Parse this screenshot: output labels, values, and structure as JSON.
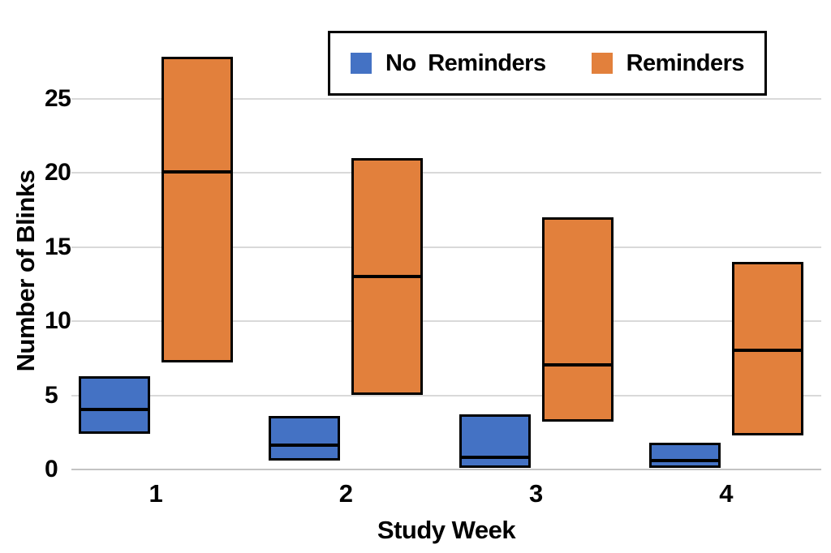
{
  "chart_data": {
    "type": "box",
    "title": "",
    "xlabel": "Study Week",
    "ylabel": "Number of Blinks",
    "categories": [
      "1",
      "2",
      "3",
      "4"
    ],
    "y_ticks": [
      0,
      5,
      10,
      15,
      20,
      25
    ],
    "ylim": [
      0,
      31.5
    ],
    "grid": "horizontal",
    "legend_position": "top-right-inside",
    "series": [
      {
        "name": "No Reminders",
        "color": "#4472C4",
        "boxes": [
          {
            "week": "1",
            "q1": 2.4,
            "median": 4.0,
            "q3": 6.3
          },
          {
            "week": "2",
            "q1": 0.6,
            "median": 1.6,
            "q3": 3.6
          },
          {
            "week": "3",
            "q1": 0.1,
            "median": 0.8,
            "q3": 3.7
          },
          {
            "week": "4",
            "q1": 0.1,
            "median": 0.6,
            "q3": 1.8
          }
        ]
      },
      {
        "name": "Reminders",
        "color": "#E2803C",
        "boxes": [
          {
            "week": "1",
            "q1": 7.2,
            "median": 20.0,
            "q3": 27.8
          },
          {
            "week": "2",
            "q1": 5.0,
            "median": 13.0,
            "q3": 21.0
          },
          {
            "week": "3",
            "q1": 3.2,
            "median": 7.0,
            "q3": 17.0
          },
          {
            "week": "4",
            "q1": 2.3,
            "median": 8.0,
            "q3": 14.0
          }
        ]
      }
    ],
    "colors": {
      "gridline": "#d9d9d9",
      "zero_axis_line": "#c3c3c3",
      "box_border": "#000000",
      "text": "#000000"
    }
  }
}
